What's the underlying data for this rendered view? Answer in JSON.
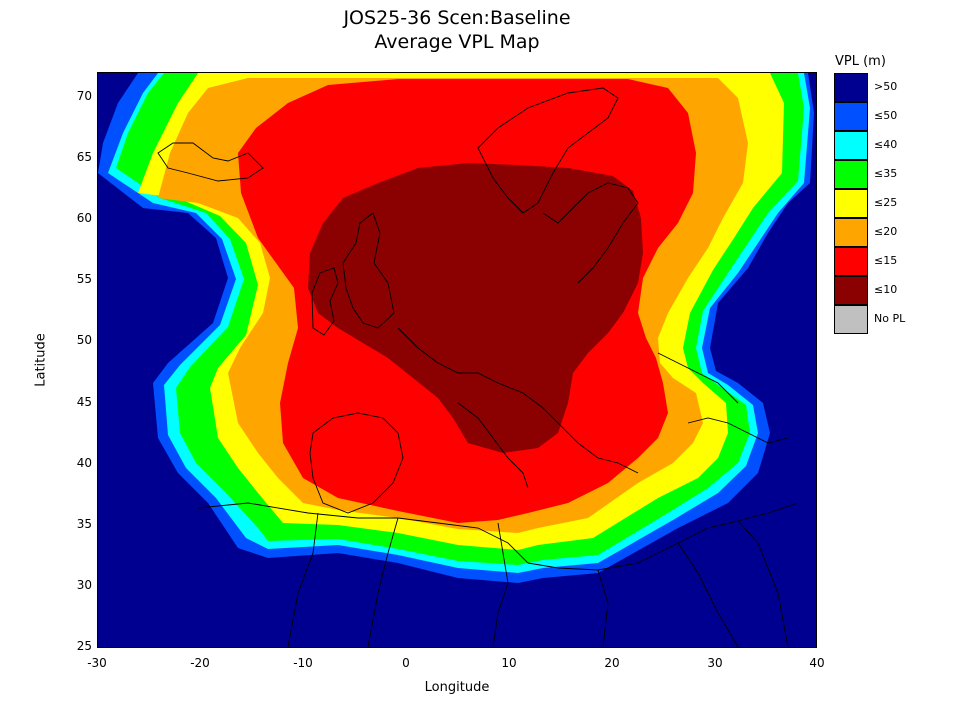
{
  "header": {
    "title_line1": "JOS25-36 Scen:Baseline",
    "title_line2": "Average VPL Map"
  },
  "axes": {
    "xlabel": "Longitude",
    "ylabel": "Latitude",
    "xticks": [
      "-30",
      "-20",
      "-10",
      "0",
      "10",
      "20",
      "30",
      "40"
    ],
    "yticks": [
      "70",
      "65",
      "60",
      "55",
      "50",
      "45",
      "40",
      "35",
      "30",
      "25"
    ],
    "xlim": [
      -30,
      40
    ],
    "ylim": [
      25,
      72
    ]
  },
  "legend": {
    "title": "VPL (m)",
    "items": [
      {
        "label": ">50",
        "color": "#000090"
      },
      {
        "label": "≤50",
        "color": "#0050ff"
      },
      {
        "label": "≤40",
        "color": "#00ffff"
      },
      {
        "label": "≤35",
        "color": "#00ff00"
      },
      {
        "label": "≤25",
        "color": "#ffff00"
      },
      {
        "label": "≤20",
        "color": "#ffa500"
      },
      {
        "label": "≤15",
        "color": "#ff0000"
      },
      {
        "label": "≤10",
        "color": "#8b0000"
      },
      {
        "label": "No PL",
        "color": "#c0c0c0"
      }
    ]
  }
}
